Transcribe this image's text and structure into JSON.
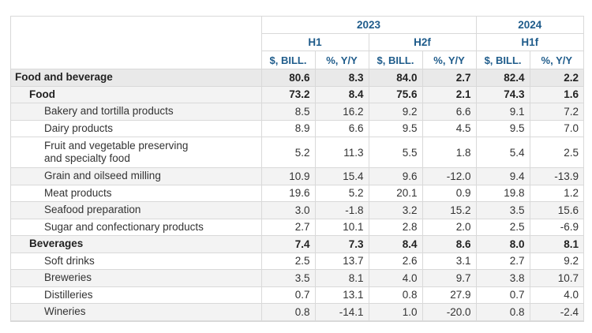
{
  "header": {
    "years": [
      "2023",
      "2024"
    ],
    "halves": [
      "H1",
      "H2f",
      "H1f"
    ],
    "units": [
      "$, BILL.",
      "%, Y/Y",
      "$, BILL.",
      "%, Y/Y",
      "$, BILL.",
      "%, Y/Y"
    ]
  },
  "rows": [
    {
      "label": "Food and beverage",
      "values": [
        "80.6",
        "8.3",
        "84.0",
        "2.7",
        "82.4",
        "2.2"
      ]
    },
    {
      "label": "Food",
      "values": [
        "73.2",
        "8.4",
        "75.6",
        "2.1",
        "74.3",
        "1.6"
      ]
    },
    {
      "label": "Bakery and tortilla products",
      "values": [
        "8.5",
        "16.2",
        "9.2",
        "6.6",
        "9.1",
        "7.2"
      ]
    },
    {
      "label": "Dairy products",
      "values": [
        "8.9",
        "6.6",
        "9.5",
        "4.5",
        "9.5",
        "7.0"
      ]
    },
    {
      "label_lines": [
        "Fruit and vegetable preserving",
        "and specialty food"
      ],
      "values": [
        "5.2",
        "11.3",
        "5.5",
        "1.8",
        "5.4",
        "2.5"
      ]
    },
    {
      "label": "Grain and oilseed milling",
      "values": [
        "10.9",
        "15.4",
        "9.6",
        "-12.0",
        "9.4",
        "-13.9"
      ]
    },
    {
      "label": "Meat products",
      "values": [
        "19.6",
        "5.2",
        "20.1",
        "0.9",
        "19.8",
        "1.2"
      ]
    },
    {
      "label": "Seafood preparation",
      "values": [
        "3.0",
        "-1.8",
        "3.2",
        "15.2",
        "3.5",
        "15.6"
      ]
    },
    {
      "label": "Sugar and confectionary products",
      "values": [
        "2.7",
        "10.1",
        "2.8",
        "2.0",
        "2.5",
        "-6.9"
      ]
    },
    {
      "label": "Beverages",
      "values": [
        "7.4",
        "7.3",
        "8.4",
        "8.6",
        "8.0",
        "8.1"
      ]
    },
    {
      "label": "Soft drinks",
      "values": [
        "2.5",
        "13.7",
        "2.6",
        "3.1",
        "2.7",
        "9.2"
      ]
    },
    {
      "label": "Breweries",
      "values": [
        "3.5",
        "8.1",
        "4.0",
        "9.7",
        "3.8",
        "10.7"
      ]
    },
    {
      "label": "Distilleries",
      "values": [
        "0.7",
        "13.1",
        "0.8",
        "27.9",
        "0.7",
        "4.0"
      ]
    },
    {
      "label": "Wineries",
      "values": [
        "0.8",
        "-14.1",
        "1.0",
        "-20.0",
        "0.8",
        "-2.4"
      ]
    }
  ]
}
